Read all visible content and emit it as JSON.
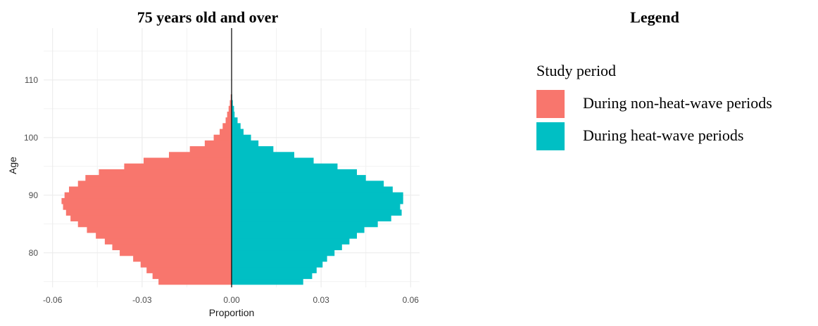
{
  "chart_data": {
    "type": "bar",
    "orientation": "horizontal",
    "title": "75 years old and over",
    "xlabel": "Proportion",
    "ylabel": "Age",
    "xlim": [
      -0.063,
      0.063
    ],
    "ylim": [
      74,
      119
    ],
    "x_ticks": [
      -0.06,
      -0.03,
      0.0,
      0.03,
      0.06
    ],
    "x_tick_labels": [
      "-0.06",
      "-0.03",
      "0.00",
      "0.03",
      "0.06"
    ],
    "y_ticks": [
      80,
      90,
      100,
      110
    ],
    "y_tick_labels": [
      "80",
      "90",
      "100",
      "110"
    ],
    "grid": true,
    "ages": [
      75,
      76,
      77,
      78,
      79,
      80,
      81,
      82,
      83,
      84,
      85,
      86,
      87,
      88,
      89,
      90,
      91,
      92,
      93,
      94,
      95,
      96,
      97,
      98,
      99,
      100,
      101,
      102,
      103,
      104,
      105,
      106,
      107,
      108
    ],
    "series": [
      {
        "name": "During non-heat-wave periods",
        "color": "#F8766D",
        "values": [
          -0.0245,
          -0.0265,
          -0.0285,
          -0.0305,
          -0.033,
          -0.0375,
          -0.04,
          -0.0425,
          -0.0455,
          -0.0485,
          -0.0515,
          -0.054,
          -0.0555,
          -0.0565,
          -0.057,
          -0.056,
          -0.0545,
          -0.0515,
          -0.049,
          -0.0445,
          -0.036,
          -0.0295,
          -0.021,
          -0.014,
          -0.009,
          -0.006,
          -0.004,
          -0.003,
          -0.002,
          -0.0015,
          -0.001,
          -0.0006,
          -0.0003,
          -0.0001
        ]
      },
      {
        "name": "During heat-wave periods",
        "color": "#00BFC4",
        "values": [
          0.024,
          0.027,
          0.0285,
          0.0305,
          0.032,
          0.0345,
          0.037,
          0.0395,
          0.042,
          0.0445,
          0.049,
          0.0535,
          0.057,
          0.0565,
          0.0575,
          0.0575,
          0.054,
          0.051,
          0.045,
          0.042,
          0.0355,
          0.0275,
          0.021,
          0.014,
          0.009,
          0.0065,
          0.004,
          0.003,
          0.002,
          0.001,
          0.0008,
          0.0004,
          0.0002,
          0.0001
        ]
      }
    ]
  },
  "legend": {
    "title": "Legend",
    "subtitle": "Study period",
    "items": [
      {
        "label": "During non-heat-wave periods",
        "color": "#F8766D"
      },
      {
        "label": "During heat-wave periods",
        "color": "#00BFC4"
      }
    ]
  }
}
